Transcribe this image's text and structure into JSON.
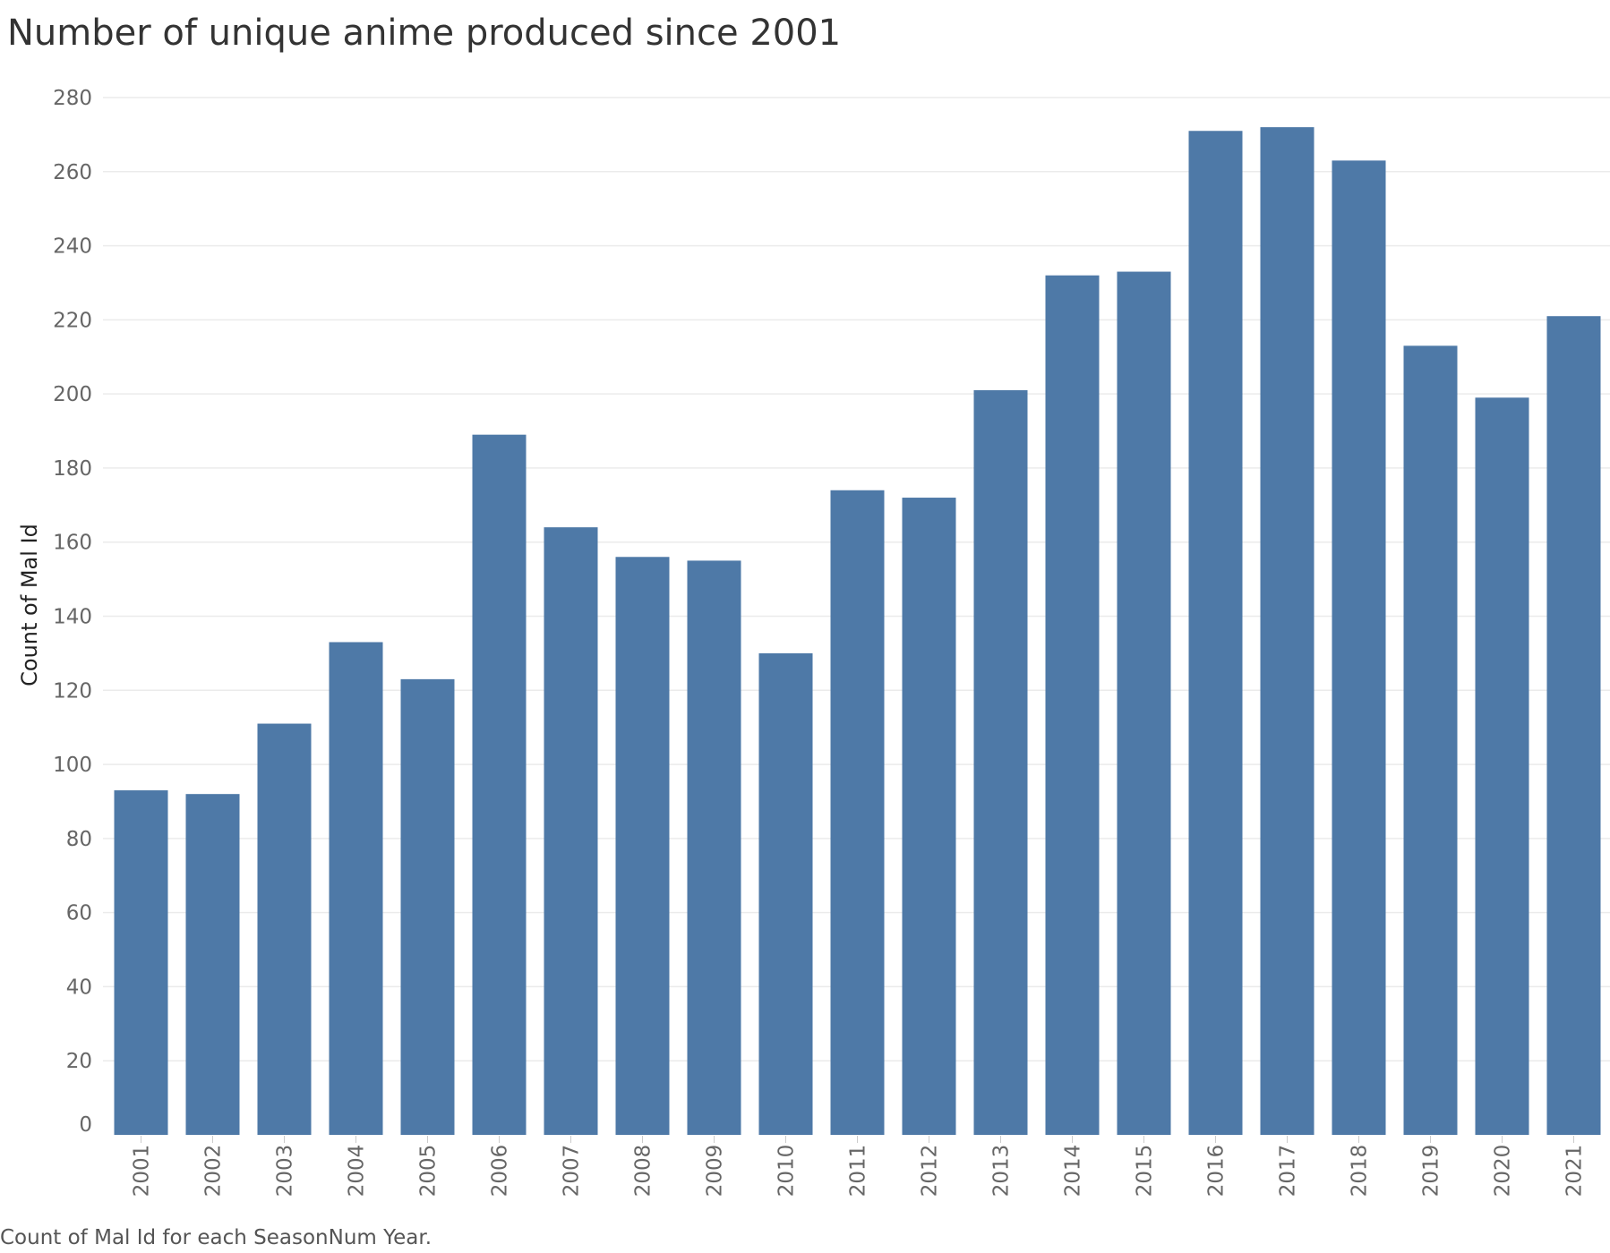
{
  "chart_data": {
    "type": "bar",
    "title": "Number of unique anime produced since 2001",
    "ylabel": "Count of Mal Id",
    "xlabel": "",
    "caption": "Count of Mal Id for each SeasonNum Year.",
    "categories": [
      "2001",
      "2002",
      "2003",
      "2004",
      "2005",
      "2006",
      "2007",
      "2008",
      "2009",
      "2010",
      "2011",
      "2012",
      "2013",
      "2014",
      "2015",
      "2016",
      "2017",
      "2018",
      "2019",
      "2020",
      "2021"
    ],
    "values": [
      93,
      92,
      111,
      133,
      123,
      189,
      164,
      156,
      155,
      130,
      174,
      172,
      201,
      232,
      233,
      271,
      272,
      263,
      213,
      199,
      221
    ],
    "ylim": [
      0,
      280
    ],
    "yticks": [
      0,
      20,
      40,
      60,
      80,
      100,
      120,
      140,
      160,
      180,
      200,
      220,
      240,
      260,
      280
    ],
    "grid": true,
    "legend": "none",
    "bar_color": "#4e79a7",
    "gridline_color": "#ebebeb"
  }
}
